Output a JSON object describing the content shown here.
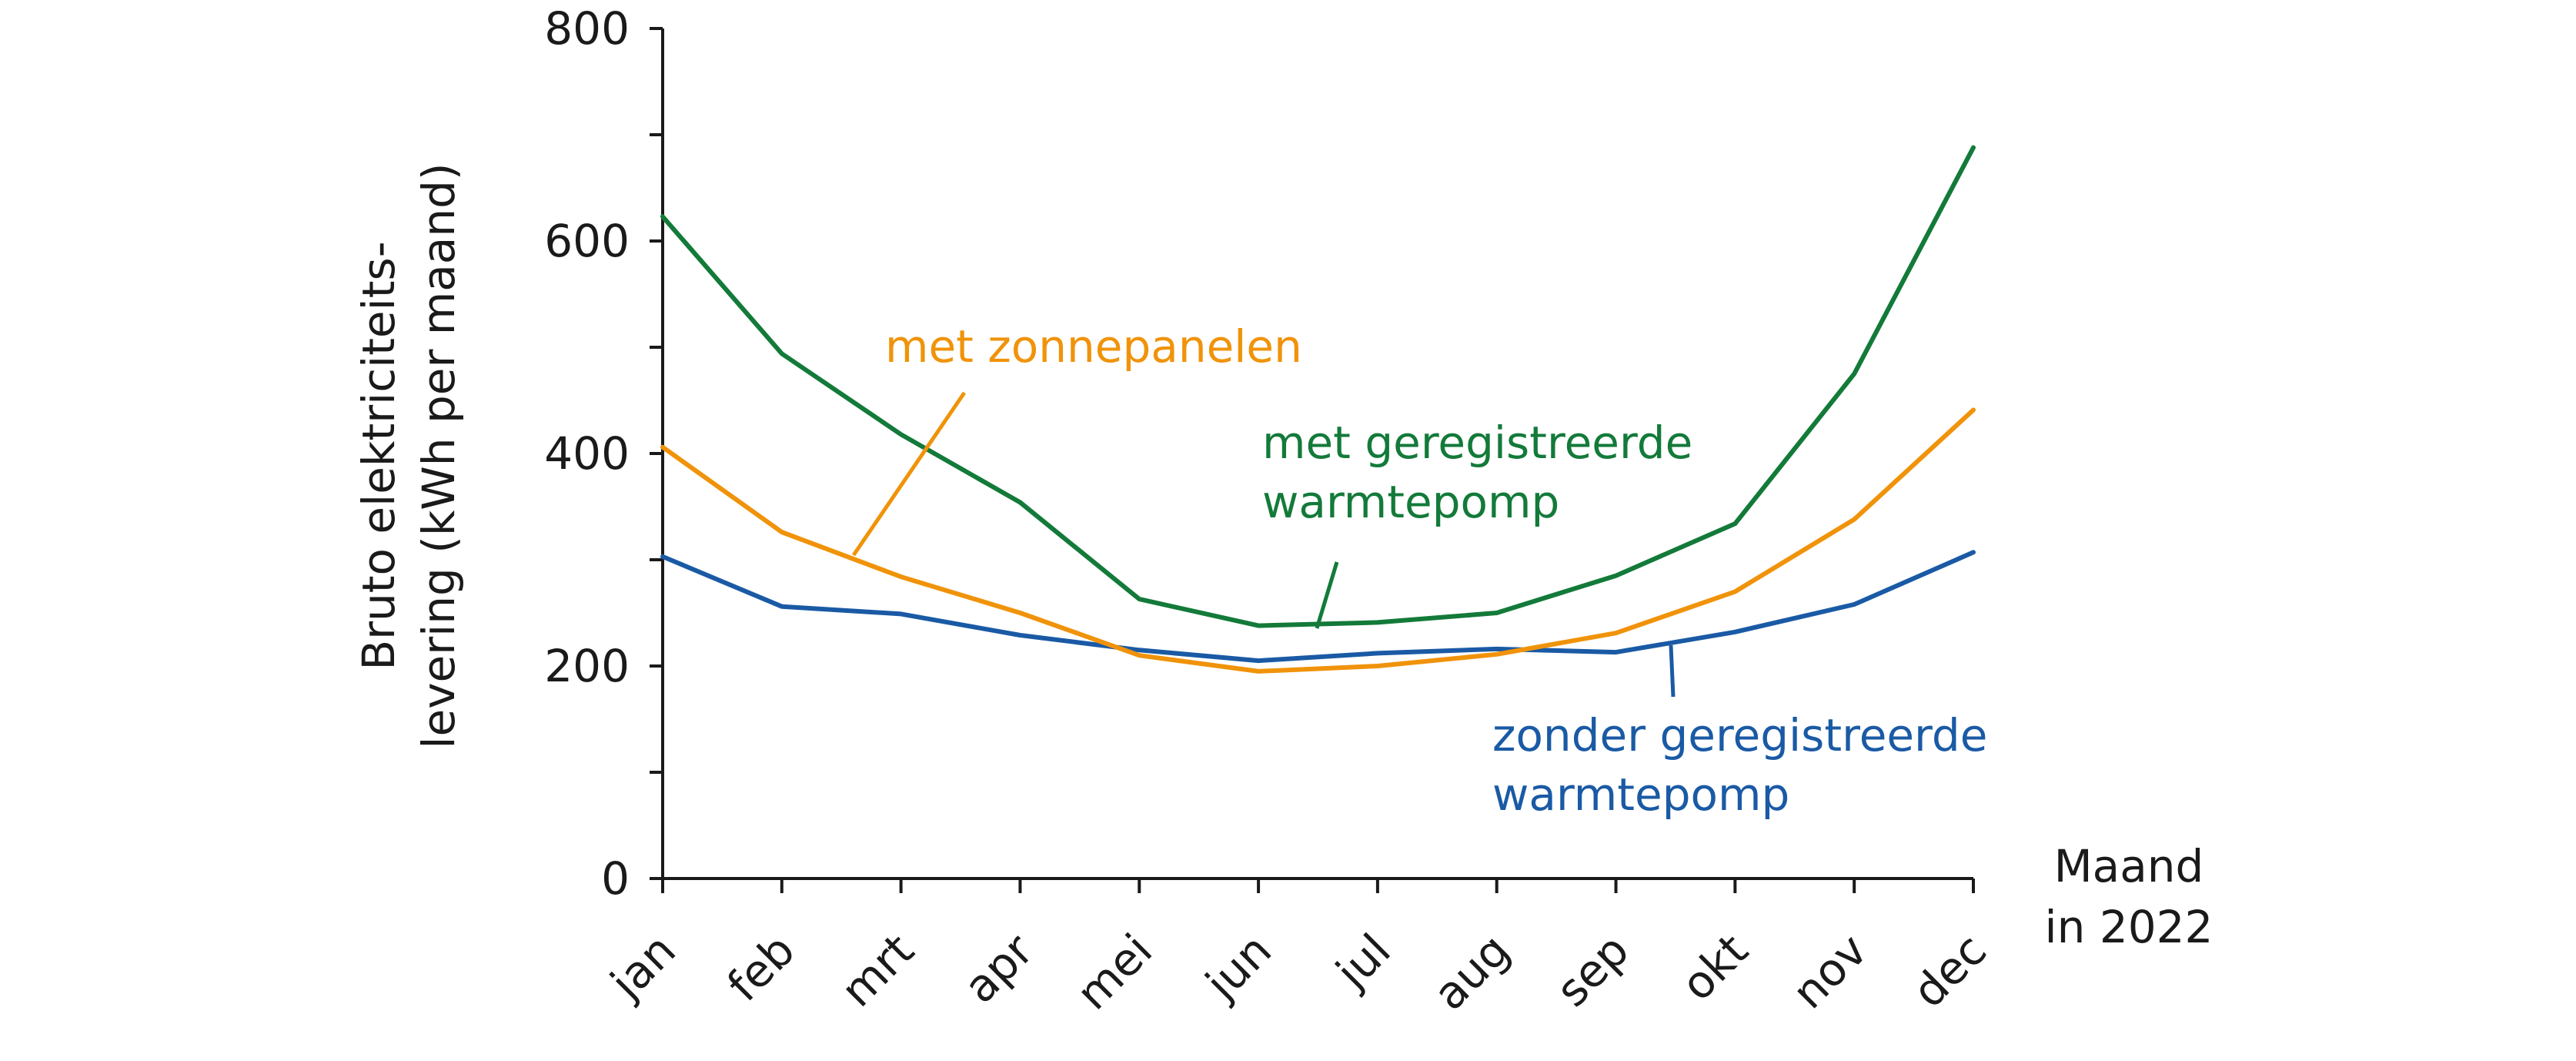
{
  "chart_data": {
    "type": "line",
    "title": "",
    "xlabel": [
      "Maand",
      "in 2022"
    ],
    "ylabel": [
      "Bruto elektriciteits-",
      "levering (kWh per maand)"
    ],
    "categories": [
      "jan",
      "feb",
      "mrt",
      "apr",
      "mei",
      "jun",
      "jul",
      "aug",
      "sep",
      "okt",
      "nov",
      "dec"
    ],
    "ylim": [
      0,
      800
    ],
    "yticks": [
      0,
      200,
      400,
      600,
      800
    ],
    "yticks_minor": [
      100,
      300,
      500,
      700
    ],
    "series": [
      {
        "name": "met geregistreerde warmtepomp",
        "label_lines": [
          "met geregistreerde",
          "warmtepomp"
        ],
        "color": "#137a3a",
        "values": [
          623,
          494,
          418,
          354,
          263,
          238,
          241,
          250,
          285,
          334,
          475,
          688
        ]
      },
      {
        "name": "met zonnepanelen",
        "label_lines": [
          "met zonnepanelen"
        ],
        "color": "#f0930a",
        "values": [
          406,
          326,
          284,
          250,
          210,
          195,
          200,
          211,
          231,
          270,
          338,
          441
        ]
      },
      {
        "name": "zonder geregistreerde warmtepomp",
        "label_lines": [
          "zonder geregistreerde",
          "warmtepomp"
        ],
        "color": "#1a5aa5",
        "values": [
          303,
          256,
          249,
          229,
          215,
          205,
          212,
          216,
          213,
          232,
          258,
          307
        ]
      }
    ]
  }
}
